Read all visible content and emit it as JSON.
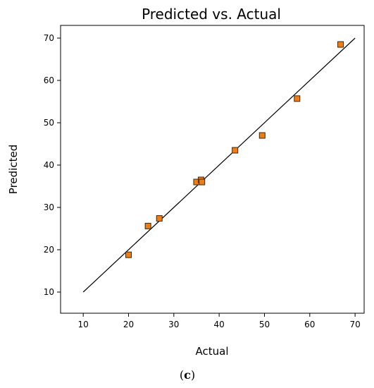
{
  "chart_data": {
    "type": "scatter",
    "title": "Predicted vs. Actual",
    "xlabel": "Actual",
    "ylabel": "Predicted",
    "xlim": [
      5,
      72
    ],
    "ylim": [
      5,
      73
    ],
    "xticks": [
      10,
      20,
      30,
      40,
      50,
      60,
      70
    ],
    "yticks": [
      10,
      20,
      30,
      40,
      50,
      60,
      70
    ],
    "grid": false,
    "reference_line": {
      "x": [
        10,
        70
      ],
      "y": [
        10,
        70
      ]
    },
    "points": [
      {
        "x": 20.0,
        "y": 18.8
      },
      {
        "x": 24.3,
        "y": 25.6
      },
      {
        "x": 26.8,
        "y": 27.4
      },
      {
        "x": 35.0,
        "y": 36.0
      },
      {
        "x": 36.0,
        "y": 36.5
      },
      {
        "x": 36.2,
        "y": 36.0
      },
      {
        "x": 43.5,
        "y": 43.5
      },
      {
        "x": 49.5,
        "y": 47.0
      },
      {
        "x": 57.2,
        "y": 55.7
      },
      {
        "x": 66.8,
        "y": 68.5
      }
    ],
    "marker_color": "#f07d12",
    "marker_edge": "#3a2a10",
    "line_color": "#000000"
  },
  "caption": {
    "open": "(",
    "letter": "c",
    "close": ")"
  }
}
